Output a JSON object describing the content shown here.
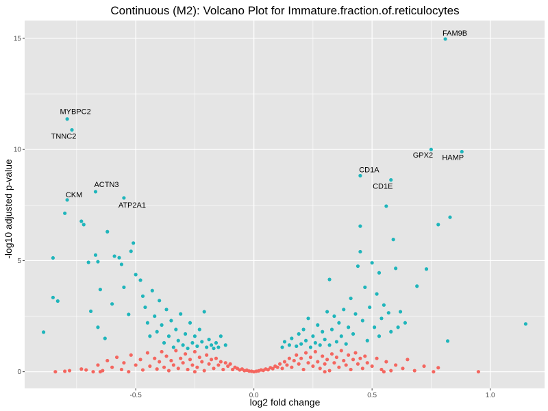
{
  "chart_data": {
    "type": "scatter",
    "title": "Continuous (M2): Volcano Plot for Immature.fraction.of.reticulocytes",
    "xlabel": "log2 fold change",
    "ylabel": "-log10 adjusted p-value",
    "xlim": [
      -0.97,
      1.23
    ],
    "ylim": [
      -0.75,
      15.8
    ],
    "x_ticks": [
      -0.5,
      0.0,
      0.5,
      1.0
    ],
    "x_tick_labels": [
      "-0.5",
      "0.0",
      "0.5",
      "1.0"
    ],
    "y_ticks": [
      0,
      5,
      10,
      15
    ],
    "y_tick_labels": [
      "0",
      "5",
      "10",
      "15"
    ],
    "grid": true,
    "legend": "none",
    "colors": {
      "panel": "#e5e5e5",
      "grid": "#ffffff",
      "significant": "#1fb5bb",
      "not_significant": "#f4665f"
    },
    "significance_threshold_neg_log10_p": 1.0,
    "labeled_points": [
      {
        "label": "FAM9B",
        "x": 0.81,
        "y": 14.97
      },
      {
        "label": "MYBPC2",
        "x": -0.79,
        "y": 11.37
      },
      {
        "label": "TNNC2",
        "x": -0.77,
        "y": 10.88
      },
      {
        "label": "GPX2",
        "x": 0.75,
        "y": 10.0
      },
      {
        "label": "HAMP",
        "x": 0.88,
        "y": 9.9
      },
      {
        "label": "CD1A",
        "x": 0.45,
        "y": 8.82
      },
      {
        "label": "CD1E",
        "x": 0.58,
        "y": 8.63
      },
      {
        "label": "ACTN3",
        "x": -0.67,
        "y": 8.1
      },
      {
        "label": "ATP2A1",
        "x": -0.55,
        "y": 7.82
      },
      {
        "label": "CKM",
        "x": -0.79,
        "y": 7.73
      }
    ],
    "significant_points": [
      [
        -0.89,
        1.78
      ],
      [
        -0.85,
        5.12
      ],
      [
        -0.85,
        3.34
      ],
      [
        -0.83,
        3.18
      ],
      [
        -0.8,
        7.13
      ],
      [
        -0.73,
        6.77
      ],
      [
        -0.72,
        6.62
      ],
      [
        -0.7,
        4.92
      ],
      [
        -0.69,
        2.72
      ],
      [
        -0.67,
        5.25
      ],
      [
        -0.66,
        4.95
      ],
      [
        -0.66,
        2.0
      ],
      [
        -0.65,
        3.7
      ],
      [
        -0.63,
        1.5
      ],
      [
        -0.62,
        6.3
      ],
      [
        -0.59,
        5.2
      ],
      [
        -0.57,
        5.13
      ],
      [
        -0.56,
        4.83
      ],
      [
        -0.55,
        3.8
      ],
      [
        -0.53,
        2.58
      ],
      [
        -0.52,
        5.42
      ],
      [
        -0.51,
        5.79
      ],
      [
        -0.5,
        4.37
      ],
      [
        -0.48,
        4.12
      ],
      [
        -0.47,
        3.4
      ],
      [
        -0.46,
        2.9
      ],
      [
        -0.45,
        2.2
      ],
      [
        -0.44,
        1.6
      ],
      [
        -0.43,
        3.65
      ],
      [
        -0.42,
        2.5
      ],
      [
        -0.41,
        1.8
      ],
      [
        -0.4,
        3.2
      ],
      [
        -0.39,
        2.1
      ],
      [
        -0.38,
        1.3
      ],
      [
        -0.37,
        2.8
      ],
      [
        -0.36,
        1.6
      ],
      [
        -0.35,
        2.3
      ],
      [
        -0.34,
        1.1
      ],
      [
        -0.33,
        1.9
      ],
      [
        -0.32,
        1.4
      ],
      [
        -0.31,
        2.6
      ],
      [
        -0.3,
        1.2
      ],
      [
        -0.29,
        1.7
      ],
      [
        -0.28,
        1.05
      ],
      [
        -0.27,
        2.2
      ],
      [
        -0.26,
        1.3
      ],
      [
        -0.25,
        1.6
      ],
      [
        -0.24,
        1.15
      ],
      [
        -0.23,
        1.9
      ],
      [
        -0.22,
        1.35
      ],
      [
        -0.21,
        2.7
      ],
      [
        -0.2,
        1.1
      ],
      [
        -0.19,
        1.45
      ],
      [
        -0.18,
        1.2
      ],
      [
        -0.17,
        1.05
      ],
      [
        -0.16,
        1.3
      ],
      [
        -0.15,
        1.1
      ],
      [
        -0.14,
        1.6
      ],
      [
        -0.12,
        1.2
      ],
      [
        0.12,
        1.1
      ],
      [
        0.13,
        1.35
      ],
      [
        0.15,
        1.2
      ],
      [
        0.16,
        1.5
      ],
      [
        0.18,
        1.15
      ],
      [
        0.19,
        1.7
      ],
      [
        0.2,
        1.25
      ],
      [
        0.21,
        1.9
      ],
      [
        0.22,
        1.4
      ],
      [
        0.23,
        2.4
      ],
      [
        0.24,
        1.1
      ],
      [
        0.25,
        1.6
      ],
      [
        0.26,
        1.3
      ],
      [
        0.27,
        2.1
      ],
      [
        0.28,
        1.2
      ],
      [
        0.29,
        1.8
      ],
      [
        0.3,
        1.45
      ],
      [
        0.31,
        2.7
      ],
      [
        0.32,
        1.2
      ],
      [
        0.33,
        1.9
      ],
      [
        0.34,
        2.5
      ],
      [
        0.35,
        1.35
      ],
      [
        0.36,
        2.2
      ],
      [
        0.37,
        1.6
      ],
      [
        0.38,
        2.8
      ],
      [
        0.39,
        1.25
      ],
      [
        0.4,
        2.0
      ],
      [
        0.41,
        3.3
      ],
      [
        0.42,
        1.7
      ],
      [
        0.43,
        2.6
      ],
      [
        0.44,
        4.75
      ],
      [
        0.45,
        6.55
      ],
      [
        0.45,
        5.4
      ],
      [
        0.46,
        2.3
      ],
      [
        0.47,
        3.8
      ],
      [
        0.48,
        1.4
      ],
      [
        0.49,
        2.9
      ],
      [
        0.5,
        4.9
      ],
      [
        0.51,
        2.0
      ],
      [
        0.52,
        3.5
      ],
      [
        0.53,
        1.6
      ],
      [
        0.54,
        2.4
      ],
      [
        0.55,
        3.0
      ],
      [
        0.56,
        7.45
      ],
      [
        0.57,
        2.65
      ],
      [
        0.58,
        1.8
      ],
      [
        0.59,
        5.95
      ],
      [
        0.6,
        4.65
      ],
      [
        0.61,
        2.0
      ],
      [
        0.62,
        2.7
      ],
      [
        0.64,
        2.2
      ],
      [
        0.69,
        3.85
      ],
      [
        0.73,
        4.62
      ],
      [
        0.78,
        6.62
      ],
      [
        0.82,
        1.38
      ],
      [
        0.83,
        6.95
      ],
      [
        1.15,
        2.15
      ],
      [
        0.32,
        4.15
      ],
      [
        -0.6,
        3.05
      ],
      [
        0.53,
        4.45
      ]
    ],
    "nonsignificant_points": [
      [
        -0.84,
        0.0
      ],
      [
        -0.8,
        0.02
      ],
      [
        -0.78,
        0.05
      ],
      [
        -0.73,
        0.12
      ],
      [
        -0.71,
        0.08
      ],
      [
        -0.68,
        0.0
      ],
      [
        -0.66,
        0.3
      ],
      [
        -0.64,
        0.05
      ],
      [
        -0.62,
        0.5
      ],
      [
        -0.6,
        0.2
      ],
      [
        -0.58,
        0.65
      ],
      [
        -0.56,
        0.1
      ],
      [
        -0.55,
        0.4
      ],
      [
        -0.53,
        0.0
      ],
      [
        -0.52,
        0.75
      ],
      [
        -0.5,
        0.3
      ],
      [
        -0.48,
        0.55
      ],
      [
        -0.47,
        0.08
      ],
      [
        -0.45,
        0.85
      ],
      [
        -0.44,
        0.25
      ],
      [
        -0.42,
        0.6
      ],
      [
        -0.41,
        0.12
      ],
      [
        -0.4,
        0.45
      ],
      [
        -0.39,
        0.9
      ],
      [
        -0.38,
        0.2
      ],
      [
        -0.37,
        0.7
      ],
      [
        -0.36,
        0.05
      ],
      [
        -0.35,
        0.5
      ],
      [
        -0.34,
        0.3
      ],
      [
        -0.33,
        0.95
      ],
      [
        -0.32,
        0.15
      ],
      [
        -0.31,
        0.6
      ],
      [
        -0.3,
        0.4
      ],
      [
        -0.29,
        0.8
      ],
      [
        -0.28,
        0.1
      ],
      [
        -0.27,
        0.55
      ],
      [
        -0.26,
        0.3
      ],
      [
        -0.25,
        0.9
      ],
      [
        -0.24,
        0.2
      ],
      [
        -0.23,
        0.65
      ],
      [
        -0.22,
        0.45
      ],
      [
        -0.21,
        0.05
      ],
      [
        -0.2,
        0.75
      ],
      [
        -0.19,
        0.35
      ],
      [
        -0.18,
        0.55
      ],
      [
        -0.17,
        0.15
      ],
      [
        -0.16,
        0.6
      ],
      [
        -0.15,
        0.3
      ],
      [
        -0.14,
        0.45
      ],
      [
        -0.13,
        0.1
      ],
      [
        -0.12,
        0.4
      ],
      [
        -0.11,
        0.25
      ],
      [
        -0.1,
        0.35
      ],
      [
        -0.09,
        0.1
      ],
      [
        -0.08,
        0.2
      ],
      [
        -0.07,
        0.15
      ],
      [
        -0.06,
        0.08
      ],
      [
        -0.05,
        0.12
      ],
      [
        -0.04,
        0.05
      ],
      [
        -0.03,
        0.07
      ],
      [
        -0.02,
        0.03
      ],
      [
        -0.01,
        0.02
      ],
      [
        0.0,
        0.0
      ],
      [
        0.01,
        0.02
      ],
      [
        0.02,
        0.04
      ],
      [
        0.03,
        0.08
      ],
      [
        0.04,
        0.06
      ],
      [
        0.05,
        0.12
      ],
      [
        0.06,
        0.09
      ],
      [
        0.07,
        0.18
      ],
      [
        0.08,
        0.14
      ],
      [
        0.09,
        0.25
      ],
      [
        0.1,
        0.2
      ],
      [
        0.11,
        0.35
      ],
      [
        0.12,
        0.15
      ],
      [
        0.13,
        0.45
      ],
      [
        0.14,
        0.3
      ],
      [
        0.15,
        0.6
      ],
      [
        0.16,
        0.2
      ],
      [
        0.17,
        0.5
      ],
      [
        0.18,
        0.75
      ],
      [
        0.19,
        0.35
      ],
      [
        0.2,
        0.6
      ],
      [
        0.21,
        0.1
      ],
      [
        0.22,
        0.85
      ],
      [
        0.23,
        0.4
      ],
      [
        0.24,
        0.65
      ],
      [
        0.25,
        0.25
      ],
      [
        0.26,
        0.9
      ],
      [
        0.27,
        0.45
      ],
      [
        0.28,
        0.15
      ],
      [
        0.29,
        0.7
      ],
      [
        0.3,
        0.35
      ],
      [
        0.31,
        0.55
      ],
      [
        0.32,
        0.05
      ],
      [
        0.33,
        0.8
      ],
      [
        0.34,
        0.4
      ],
      [
        0.35,
        0.65
      ],
      [
        0.36,
        0.2
      ],
      [
        0.37,
        0.95
      ],
      [
        0.38,
        0.5
      ],
      [
        0.39,
        0.3
      ],
      [
        0.4,
        0.75
      ],
      [
        0.41,
        0.1
      ],
      [
        0.42,
        0.55
      ],
      [
        0.43,
        0.85
      ],
      [
        0.44,
        0.35
      ],
      [
        0.45,
        0.6
      ],
      [
        0.46,
        0.15
      ],
      [
        0.47,
        0.7
      ],
      [
        0.48,
        0.4
      ],
      [
        0.5,
        0.25
      ],
      [
        0.52,
        0.6
      ],
      [
        0.54,
        0.1
      ],
      [
        0.56,
        0.45
      ],
      [
        0.58,
        0.05
      ],
      [
        0.6,
        0.3
      ],
      [
        0.63,
        0.15
      ],
      [
        0.65,
        0.55
      ],
      [
        0.68,
        0.05
      ],
      [
        0.72,
        0.25
      ],
      [
        0.76,
        0.0
      ],
      [
        0.78,
        0.18
      ],
      [
        0.95,
        0.0
      ],
      [
        -0.65,
        0.0
      ],
      [
        -0.25,
        0.0
      ],
      [
        0.3,
        0.0
      ],
      [
        0.55,
        0.0
      ]
    ]
  }
}
